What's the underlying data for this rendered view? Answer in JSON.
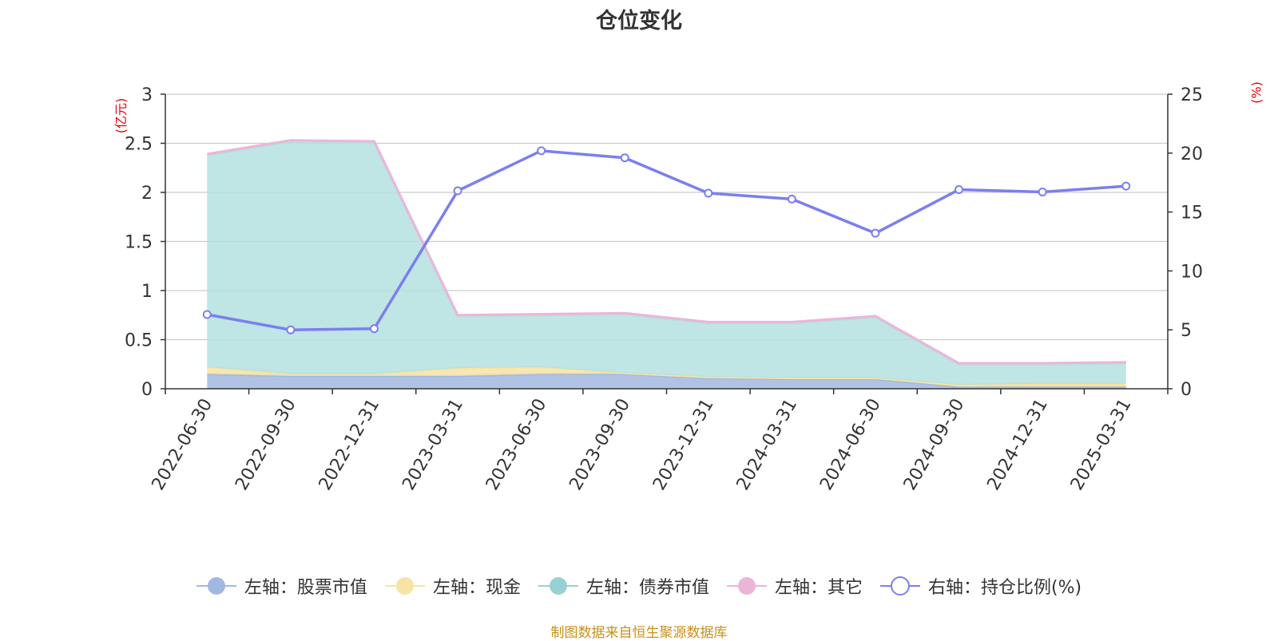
{
  "chart_data": {
    "type": "area",
    "title": "仓位变化",
    "categories": [
      "2022-06-30",
      "2022-09-30",
      "2022-12-31",
      "2023-03-31",
      "2023-06-30",
      "2023-09-30",
      "2023-12-31",
      "2024-03-31",
      "2024-06-30",
      "2024-09-30",
      "2024-12-31",
      "2025-03-31"
    ],
    "ylim_left": [
      0,
      3
    ],
    "ylim_right": [
      0,
      25
    ],
    "yticks_left": [
      "0",
      "0.5",
      "1",
      "1.5",
      "2",
      "2.5",
      "3"
    ],
    "yticks_right": [
      "0",
      "5",
      "10",
      "15",
      "20",
      "25"
    ],
    "ylabel_left": "(亿元)",
    "ylabel_right": "(%)",
    "grid": true,
    "legend_position": "bottom",
    "series": [
      {
        "name": "左轴：股票市值",
        "axis": "left",
        "stack": true,
        "color": "#a3b8e0",
        "values": [
          0.15,
          0.13,
          0.13,
          0.13,
          0.15,
          0.15,
          0.11,
          0.1,
          0.1,
          0.02,
          0.02,
          0.02
        ]
      },
      {
        "name": "左轴：现金",
        "axis": "left",
        "stack": true,
        "color": "#f7e3a3",
        "values": [
          0.07,
          0.02,
          0.02,
          0.08,
          0.07,
          0.01,
          0.01,
          0.01,
          0.01,
          0.02,
          0.03,
          0.03
        ]
      },
      {
        "name": "左轴：债券市值",
        "axis": "left",
        "stack": true,
        "color": "#b4e0e1",
        "values": [
          2.16,
          2.37,
          2.36,
          0.53,
          0.53,
          0.6,
          0.55,
          0.56,
          0.62,
          0.21,
          0.2,
          0.21
        ]
      },
      {
        "name": "左轴：其它",
        "axis": "left",
        "stack": true,
        "color": "#ebb5d8",
        "values": [
          0.01,
          0.01,
          0.01,
          0.01,
          0.01,
          0.01,
          0.01,
          0.01,
          0.01,
          0.01,
          0.01,
          0.01
        ]
      },
      {
        "name": "右轴：持仓比例(%)",
        "axis": "right",
        "type": "line",
        "color": "#7b7fee",
        "values": [
          6.3,
          5.0,
          5.1,
          16.8,
          20.2,
          19.6,
          16.6,
          16.1,
          13.2,
          16.9,
          16.7,
          17.2
        ]
      }
    ]
  },
  "legend": {
    "items": [
      {
        "label": "左轴：股票市值",
        "color": "#a3b8e0",
        "fill": "#a3b8e0"
      },
      {
        "label": "左轴：现金",
        "color": "#f7e3a3",
        "fill": "#f7e3a3"
      },
      {
        "label": "左轴：债券市值",
        "color": "#97d1d2",
        "fill": "#97d1d2"
      },
      {
        "label": "左轴：其它",
        "color": "#ebb5d8",
        "fill": "#ebb5d8"
      },
      {
        "label": "右轴：持仓比例(%)",
        "color": "#7b7fee",
        "fill": "#ffffff"
      }
    ]
  },
  "source_note": "制图数据来自恒生聚源数据库"
}
